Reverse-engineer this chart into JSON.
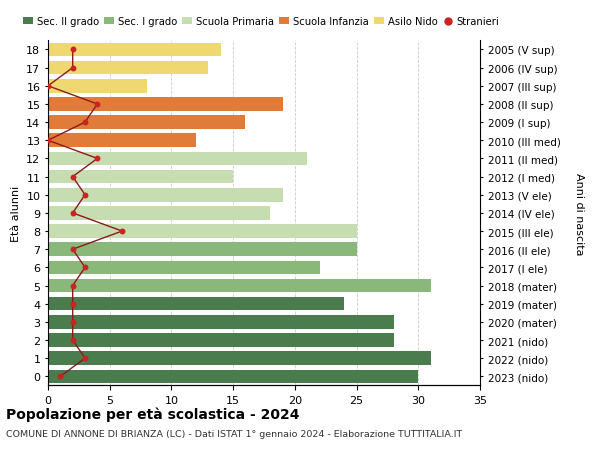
{
  "ages": [
    18,
    17,
    16,
    15,
    14,
    13,
    12,
    11,
    10,
    9,
    8,
    7,
    6,
    5,
    4,
    3,
    2,
    1,
    0
  ],
  "right_labels": [
    "2005 (V sup)",
    "2006 (IV sup)",
    "2007 (III sup)",
    "2008 (II sup)",
    "2009 (I sup)",
    "2010 (III med)",
    "2011 (II med)",
    "2012 (I med)",
    "2013 (V ele)",
    "2014 (IV ele)",
    "2015 (III ele)",
    "2016 (II ele)",
    "2017 (I ele)",
    "2018 (mater)",
    "2019 (mater)",
    "2020 (mater)",
    "2021 (nido)",
    "2022 (nido)",
    "2023 (nido)"
  ],
  "bar_values": [
    30,
    31,
    28,
    28,
    24,
    31,
    22,
    25,
    25,
    18,
    19,
    15,
    21,
    12,
    16,
    19,
    8,
    13,
    14
  ],
  "bar_colors": [
    "#4a7c4e",
    "#4a7c4e",
    "#4a7c4e",
    "#4a7c4e",
    "#4a7c4e",
    "#8ab87a",
    "#8ab87a",
    "#8ab87a",
    "#c5ddb0",
    "#c5ddb0",
    "#c5ddb0",
    "#c5ddb0",
    "#c5ddb0",
    "#e07b3a",
    "#e07b3a",
    "#e07b3a",
    "#f0d870",
    "#f0d870",
    "#f0d870"
  ],
  "stranieri_values": [
    1,
    3,
    2,
    2,
    2,
    2,
    3,
    2,
    6,
    2,
    3,
    2,
    4,
    0,
    3,
    4,
    0,
    2,
    2
  ],
  "legend_labels": [
    "Sec. II grado",
    "Sec. I grado",
    "Scuola Primaria",
    "Scuola Infanzia",
    "Asilo Nido",
    "Stranieri"
  ],
  "legend_colors": [
    "#4a7c4e",
    "#8ab87a",
    "#c5ddb0",
    "#e07b3a",
    "#f0d870",
    "#cc2222"
  ],
  "ylabel_left": "Età alunni",
  "ylabel_right": "Anni di nascita",
  "title": "Popolazione per età scolastica - 2024",
  "subtitle": "COMUNE DI ANNONE DI BRIANZA (LC) - Dati ISTAT 1° gennaio 2024 - Elaborazione TUTTITALIA.IT",
  "xlim": [
    0,
    35
  ],
  "xticks": [
    0,
    5,
    10,
    15,
    20,
    25,
    30,
    35
  ],
  "bg_color": "#ffffff",
  "grid_color": "#cccccc",
  "stranieri_line_color": "#8b1a1a",
  "stranieri_dot_color": "#cc2222"
}
